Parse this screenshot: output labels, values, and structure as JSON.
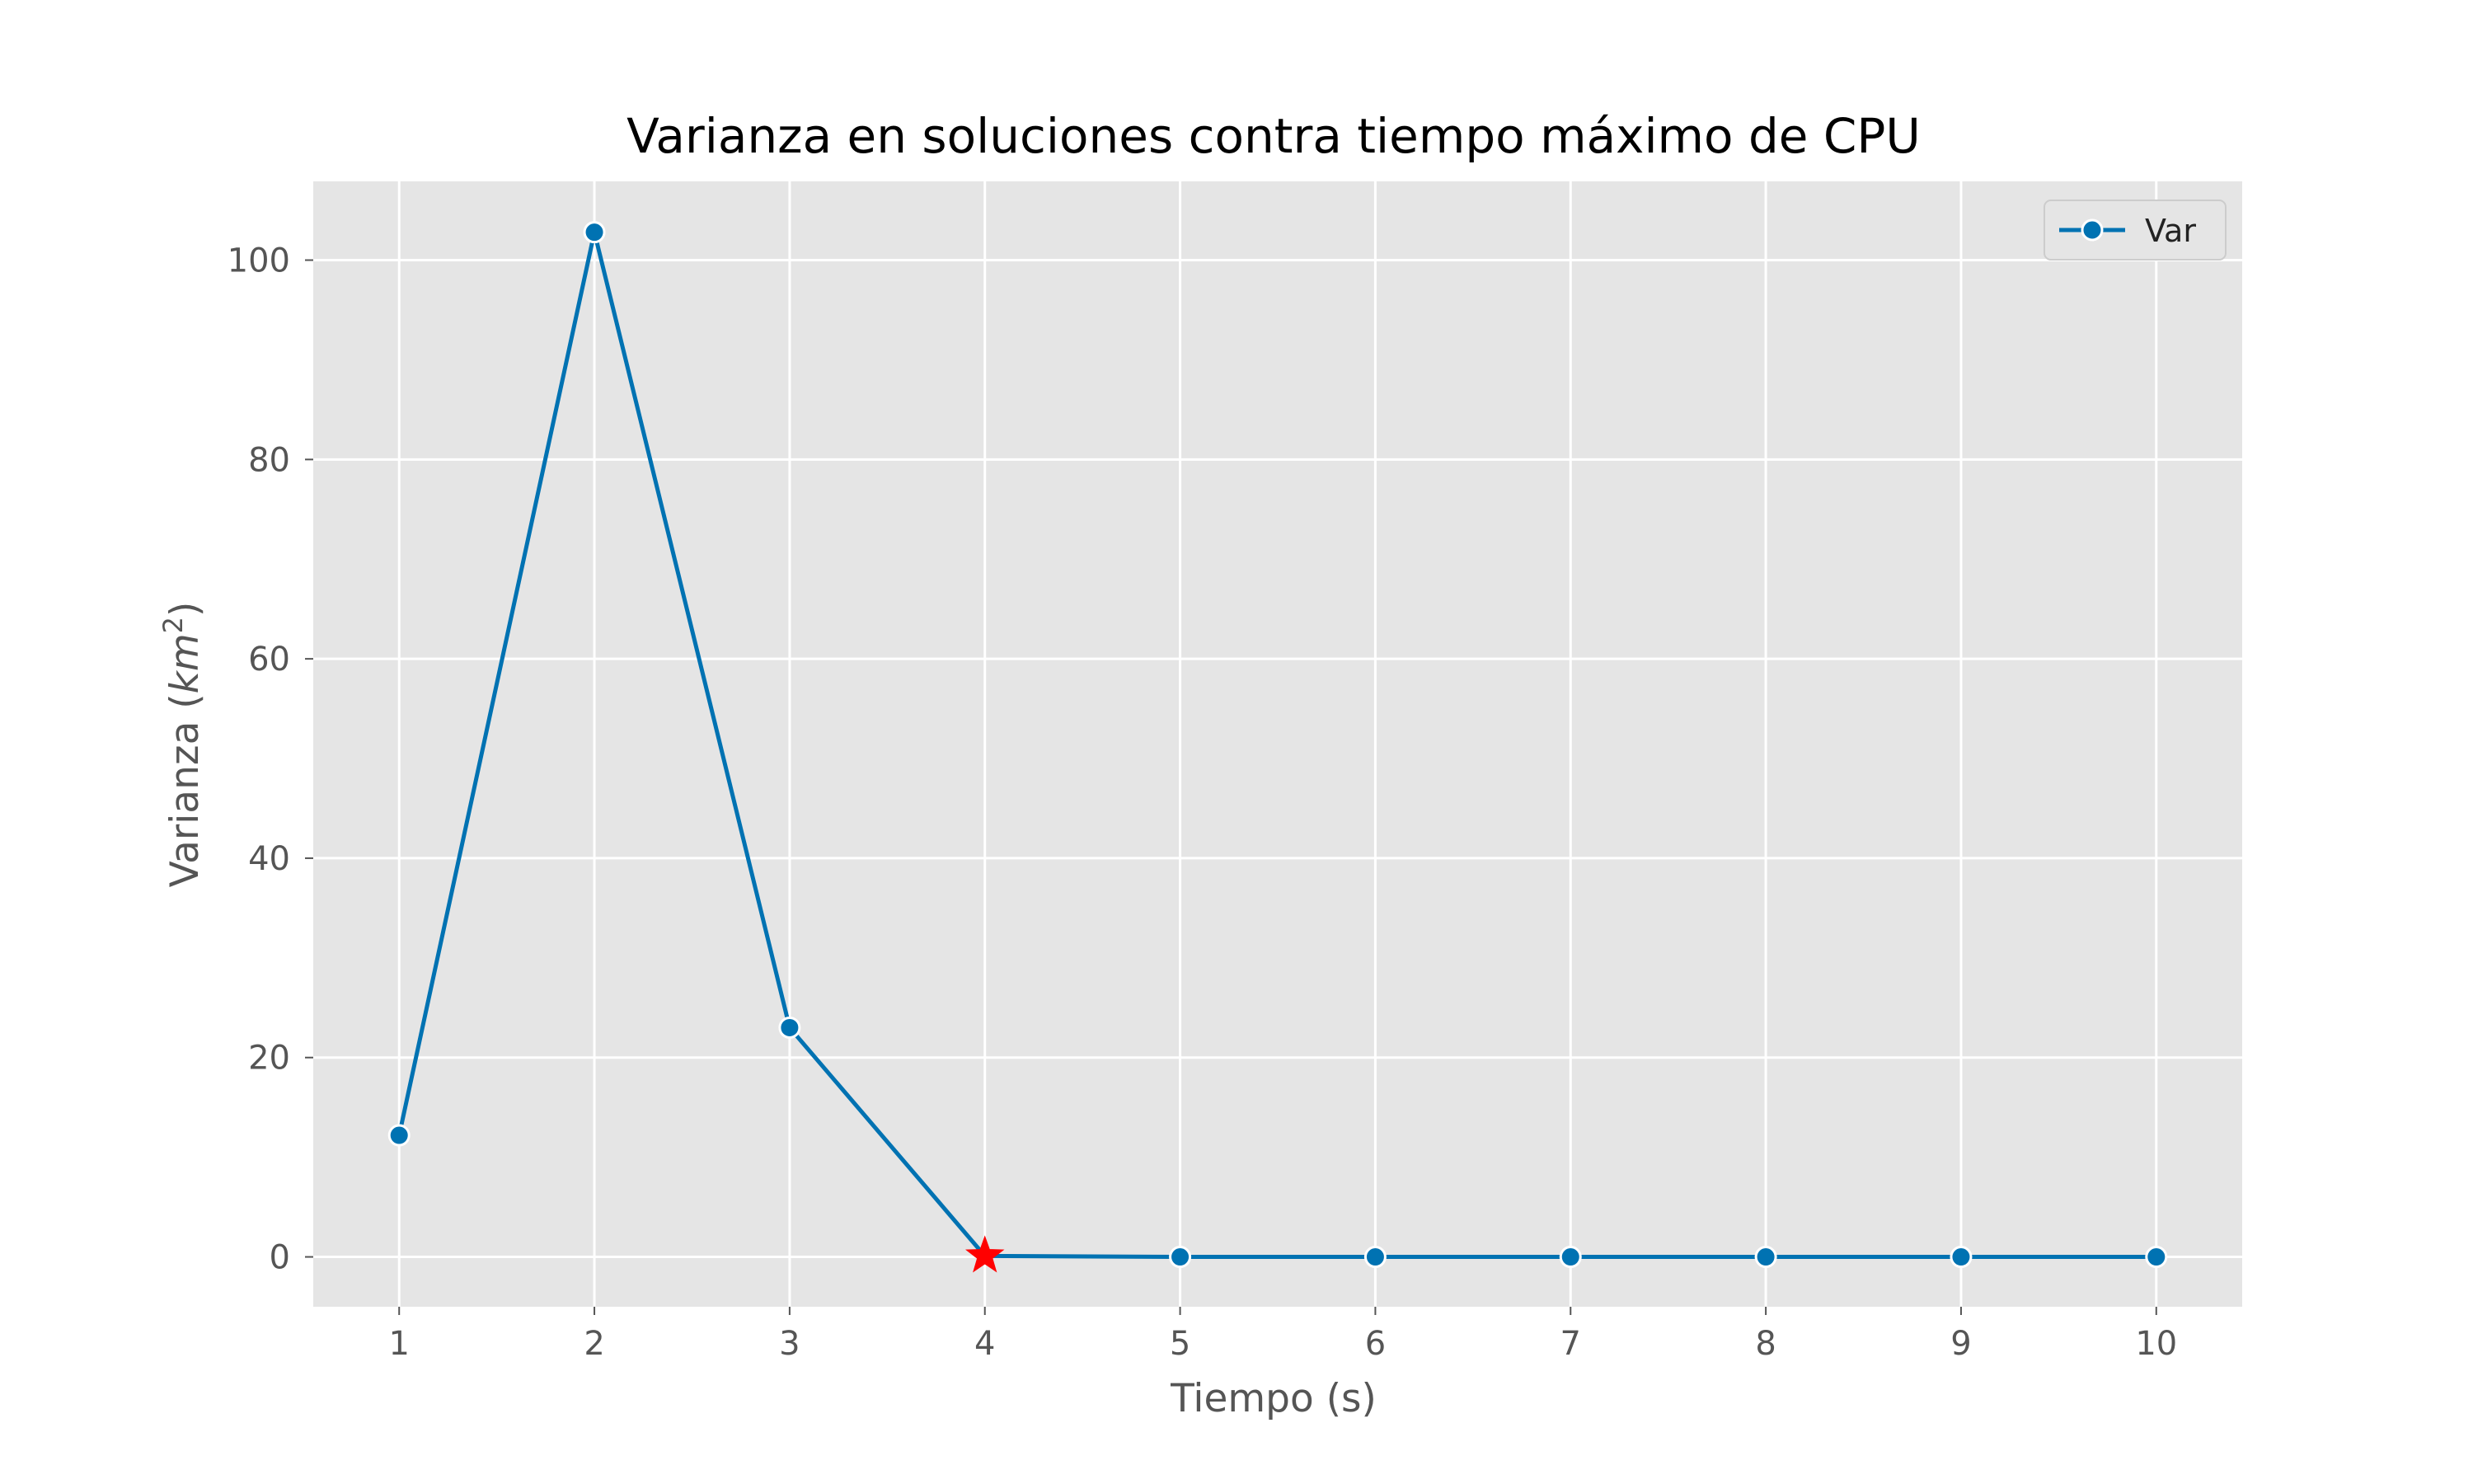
{
  "chart_data": {
    "type": "line",
    "title": "Varianza en soluciones contra tiempo máximo de CPU",
    "xlabel": "Tiempo (s)",
    "ylabel": {
      "prefix": "Varianza (",
      "base": "km",
      "superscript": "2",
      "suffix": ")"
    },
    "x": [
      1,
      2,
      3,
      4,
      5,
      6,
      7,
      8,
      9,
      10
    ],
    "series": [
      {
        "name": "Var",
        "values": [
          12.2,
          102.8,
          23.0,
          0.1,
          0.0,
          0.0,
          0.0,
          0.0,
          0.0,
          0.0
        ],
        "color": "#0072B2"
      }
    ],
    "highlight": {
      "x": 4,
      "y": 0.1,
      "marker": "star",
      "color": "#FF0000"
    },
    "xticks": [
      "1",
      "2",
      "3",
      "4",
      "5",
      "6",
      "7",
      "8",
      "9",
      "10"
    ],
    "yticks": [
      "0",
      "20",
      "40",
      "60",
      "80",
      "100"
    ],
    "xlim": [
      0.56,
      10.44
    ],
    "ylim": [
      -5.0,
      107.9
    ],
    "grid": true,
    "legend": "top-right",
    "background": "#E5E5E5",
    "grid_color": "#FFFFFF"
  }
}
